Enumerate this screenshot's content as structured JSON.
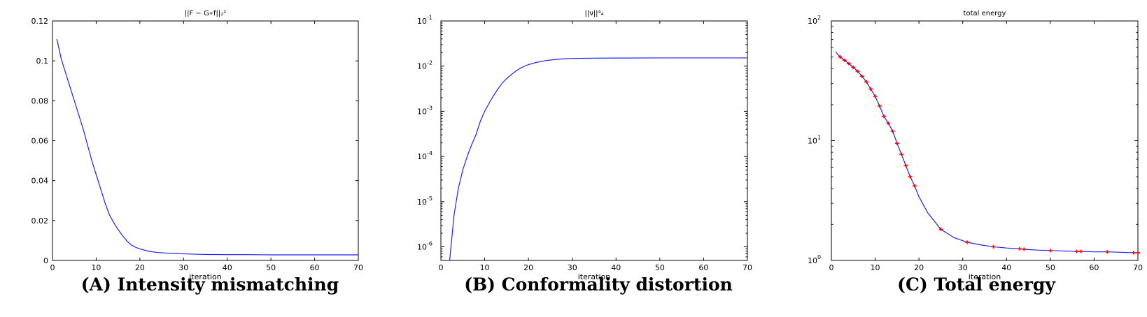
{
  "colors": {
    "line": "#1f1fff",
    "marker": "#ff0000",
    "axes": "#000000"
  },
  "chart_data": [
    {
      "type": "line",
      "title": "||F − G∘f||₂²",
      "xlabel": "iteration",
      "caption": "(A) Intensity mismatching",
      "xlim": [
        0,
        70
      ],
      "ylim": [
        0,
        0.12
      ],
      "yscale": "linear",
      "xticks": [
        0,
        10,
        20,
        30,
        40,
        50,
        60,
        70
      ],
      "yticks": [
        0,
        0.02,
        0.04,
        0.06,
        0.08,
        0.1,
        0.12
      ],
      "series": [
        {
          "x": [
            1,
            2,
            3,
            4,
            5,
            6,
            7,
            8,
            9,
            10,
            11,
            12,
            13,
            14,
            15,
            16,
            17,
            18,
            19,
            20,
            22,
            24,
            26,
            28,
            30,
            35,
            40,
            45,
            50,
            55,
            60,
            65,
            70
          ],
          "y": [
            0.111,
            0.101,
            0.094,
            0.087,
            0.08,
            0.073,
            0.066,
            0.058,
            0.05,
            0.043,
            0.036,
            0.029,
            0.023,
            0.019,
            0.0155,
            0.0125,
            0.0098,
            0.0078,
            0.0066,
            0.0058,
            0.0046,
            0.004,
            0.0037,
            0.0035,
            0.0033,
            0.003,
            0.0029,
            0.0029,
            0.0028,
            0.0028,
            0.0028,
            0.0028,
            0.0028
          ]
        }
      ]
    },
    {
      "type": "line",
      "title": "||ν||⁴₄",
      "xlabel": "iteration",
      "caption": "(B) Conformality distortion",
      "xlim": [
        0,
        70
      ],
      "ylim": [
        5e-07,
        0.1
      ],
      "yscale": "log",
      "xticks": [
        0,
        10,
        20,
        30,
        40,
        50,
        60,
        70
      ],
      "yticks": [
        {
          "value": 1e-06,
          "base": "10",
          "exp": "-6"
        },
        {
          "value": 1e-05,
          "base": "10",
          "exp": "-5"
        },
        {
          "value": 0.0001,
          "base": "10",
          "exp": "-4"
        },
        {
          "value": 0.001,
          "base": "10",
          "exp": "-3"
        },
        {
          "value": 0.01,
          "base": "10",
          "exp": "-2"
        },
        {
          "value": 0.1,
          "base": "10",
          "exp": "-1"
        }
      ],
      "series": [
        {
          "x": [
            2,
            3,
            4,
            5,
            6,
            7,
            8,
            9,
            10,
            11,
            12,
            13,
            14,
            15,
            16,
            17,
            18,
            19,
            20,
            22,
            24,
            26,
            28,
            30,
            35,
            40,
            50,
            60,
            70
          ],
          "y": [
            5e-07,
            5e-06,
            2e-05,
            5e-05,
            0.0001,
            0.00018,
            0.0003,
            0.0006,
            0.001,
            0.0015,
            0.0022,
            0.0031,
            0.0042,
            0.0053,
            0.0064,
            0.0076,
            0.0088,
            0.0099,
            0.0108,
            0.0122,
            0.0133,
            0.014,
            0.0145,
            0.0148,
            0.015,
            0.0151,
            0.0152,
            0.0152,
            0.0152
          ]
        }
      ]
    },
    {
      "type": "line",
      "title": "total energy",
      "xlabel": "iteration",
      "caption": "(C) Total energy",
      "xlim": [
        0,
        70
      ],
      "ylim": [
        1,
        100
      ],
      "yscale": "log",
      "xticks": [
        0,
        10,
        20,
        30,
        40,
        50,
        60,
        70
      ],
      "yticks": [
        {
          "value": 1,
          "base": "10",
          "exp": "0"
        },
        {
          "value": 10,
          "base": "10",
          "exp": "1"
        },
        {
          "value": 100,
          "base": "10",
          "exp": "2"
        }
      ],
      "series": [
        {
          "x": [
            1,
            2,
            3,
            4,
            5,
            6,
            7,
            8,
            9,
            10,
            11,
            12,
            13,
            14,
            15,
            16,
            17,
            18,
            19,
            20,
            22,
            25,
            28,
            31,
            34,
            37,
            40,
            43,
            44,
            47,
            50,
            53,
            56,
            57,
            60,
            63,
            66,
            69,
            70
          ],
          "y": [
            55,
            50,
            47,
            44,
            41,
            38,
            34.5,
            31,
            27,
            23.5,
            19.5,
            16,
            14,
            12,
            9.5,
            7.7,
            6.2,
            5,
            4.2,
            3.4,
            2.5,
            1.82,
            1.55,
            1.42,
            1.35,
            1.3,
            1.27,
            1.25,
            1.24,
            1.22,
            1.21,
            1.2,
            1.19,
            1.19,
            1.18,
            1.18,
            1.17,
            1.16,
            1.16
          ],
          "markers_x": [
            2,
            3,
            4,
            5,
            6,
            7,
            8,
            9,
            10,
            11,
            12,
            13,
            14,
            15,
            16,
            17,
            18,
            19,
            25,
            31,
            37,
            43,
            44,
            50,
            56,
            57,
            63,
            69,
            70
          ]
        }
      ]
    }
  ]
}
